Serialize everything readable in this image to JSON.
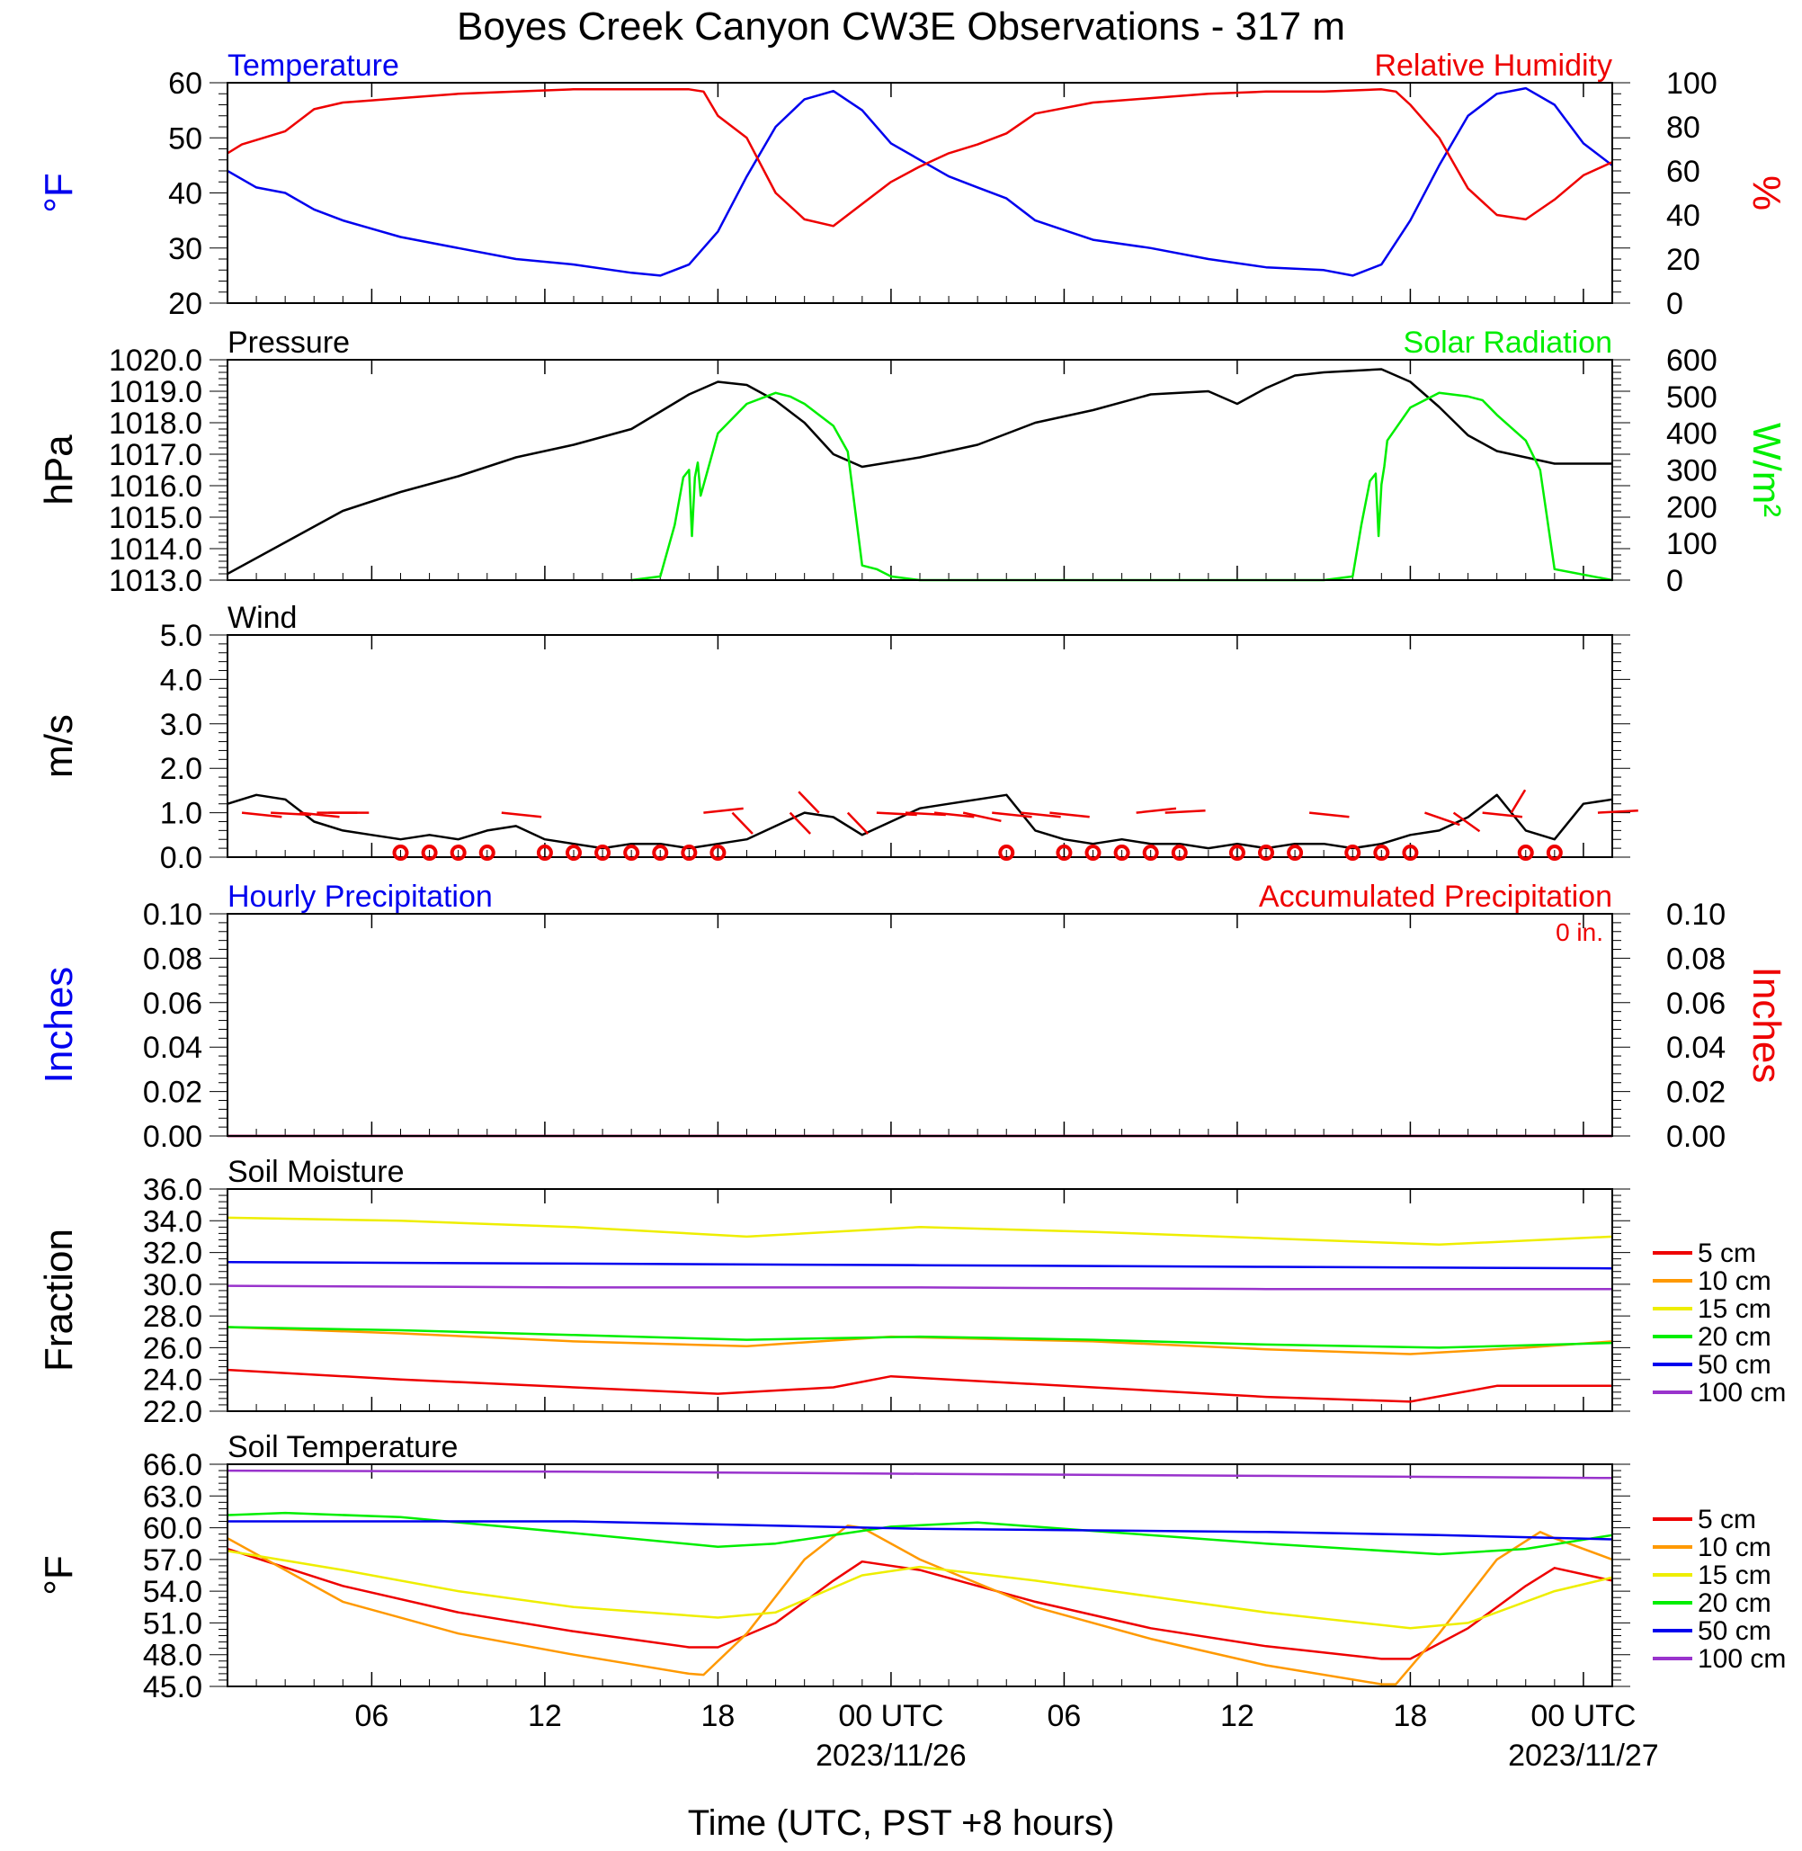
{
  "title": "Boyes Creek Canyon CW3E Observations - 317 m",
  "x_axis": {
    "label": "Time (UTC, PST +8 hours)",
    "range_hours": [
      0,
      48
    ],
    "ticks": [
      {
        "h": 5,
        "label": "06"
      },
      {
        "h": 11,
        "label": "12"
      },
      {
        "h": 17,
        "label": "18"
      },
      {
        "h": 23,
        "label": "00 UTC",
        "date": "2023/11/26"
      },
      {
        "h": 29,
        "label": "06"
      },
      {
        "h": 35,
        "label": "12"
      },
      {
        "h": 41,
        "label": "18"
      },
      {
        "h": 47,
        "label": "00 UTC",
        "date": "2023/11/27"
      }
    ]
  },
  "colors": {
    "blue": "#0000ee",
    "red": "#ee0000",
    "green": "#00ee00",
    "orange": "#ff9900",
    "yellow": "#eeee00",
    "purple": "#9933cc",
    "black": "#000000"
  },
  "chart_data": [
    {
      "type": "line",
      "panel": "temperature-rh",
      "left_title": "Temperature",
      "right_title": "Relative Humidity",
      "ylabel_left": "°F",
      "ylabel_right": "%",
      "ylim_left": [
        20,
        60
      ],
      "yticks_left": [
        "60",
        "50",
        "40",
        "30",
        "20"
      ],
      "ylim_right": [
        0,
        100
      ],
      "yticks_right": [
        "100",
        "80",
        "60",
        "40",
        "20",
        "0"
      ],
      "series": [
        {
          "name": "Temperature",
          "axis": "left",
          "color": "#0000ee",
          "x": [
            0,
            1,
            2,
            3,
            4,
            6,
            8,
            10,
            12,
            14,
            15,
            16,
            17,
            18,
            19,
            20,
            21,
            22,
            23,
            24,
            25,
            26,
            27,
            28,
            30,
            32,
            34,
            36,
            38,
            39,
            40,
            41,
            42,
            43,
            44,
            45,
            46,
            47,
            48
          ],
          "y": [
            44,
            41,
            40,
            37,
            35,
            32,
            30,
            28,
            27,
            25.5,
            25,
            27,
            33,
            43,
            52,
            57,
            58.5,
            55,
            49,
            46,
            43,
            41,
            39,
            35,
            31.5,
            30,
            28,
            26.5,
            26,
            25,
            27,
            35,
            45,
            54,
            58,
            59,
            56,
            49,
            45
          ]
        },
        {
          "name": "Relative Humidity",
          "axis": "right",
          "color": "#ee0000",
          "x": [
            0,
            0.5,
            1,
            2,
            3,
            4,
            5,
            6,
            8,
            10,
            12,
            14,
            15,
            16,
            16.5,
            17,
            18,
            19,
            20,
            21,
            22,
            23,
            24,
            25,
            26,
            27,
            28,
            30,
            32,
            34,
            36,
            38,
            40,
            40.5,
            41,
            42,
            43,
            44,
            45,
            46,
            47,
            48
          ],
          "y": [
            68,
            72,
            74,
            78,
            88,
            91,
            92,
            93,
            95,
            96,
            97,
            97,
            97,
            97,
            96,
            85,
            75,
            50,
            38,
            35,
            45,
            55,
            62,
            68,
            72,
            77,
            86,
            91,
            93,
            95,
            96,
            96,
            97,
            96,
            90,
            75,
            52,
            40,
            38,
            47,
            58,
            64
          ]
        }
      ]
    },
    {
      "type": "line",
      "panel": "pressure-solar",
      "left_title": "Pressure",
      "right_title": "Solar Radiation",
      "ylabel_left": "hPa",
      "ylabel_right": "W/m²",
      "ylim_left": [
        1013,
        1020
      ],
      "yticks_left": [
        "1020.0",
        "1019.0",
        "1018.0",
        "1017.0",
        "1016.0",
        "1015.0",
        "1014.0",
        "1013.0"
      ],
      "ylim_right": [
        0,
        600
      ],
      "yticks_right": [
        "600",
        "500",
        "400",
        "300",
        "200",
        "100",
        "0"
      ],
      "series": [
        {
          "name": "Pressure",
          "axis": "left",
          "color": "#000000",
          "x": [
            0,
            2,
            4,
            6,
            8,
            10,
            12,
            14,
            16,
            17,
            18,
            19,
            20,
            21,
            22,
            24,
            26,
            28,
            30,
            32,
            34,
            35,
            36,
            37,
            38,
            40,
            41,
            42,
            43,
            44,
            46,
            48
          ],
          "y": [
            1013.2,
            1014.2,
            1015.2,
            1015.8,
            1016.3,
            1016.9,
            1017.3,
            1017.8,
            1018.9,
            1019.3,
            1019.2,
            1018.7,
            1018.0,
            1017.0,
            1016.6,
            1016.9,
            1017.3,
            1018.0,
            1018.4,
            1018.9,
            1019.0,
            1018.6,
            1019.1,
            1019.5,
            1019.6,
            1019.7,
            1019.3,
            1018.5,
            1017.6,
            1017.1,
            1016.7,
            1016.7
          ]
        },
        {
          "name": "Solar Radiation",
          "axis": "right",
          "color": "#00ee00",
          "x": [
            14,
            15,
            15.5,
            15.8,
            16,
            16.1,
            16.2,
            16.3,
            16.4,
            17,
            18,
            19,
            19.5,
            20,
            21,
            21.5,
            22,
            22.5,
            23,
            24,
            38,
            39,
            39.3,
            39.6,
            39.8,
            39.9,
            40,
            40.1,
            40.2,
            41,
            42,
            43,
            43.5,
            44,
            45,
            45.5,
            46,
            48
          ],
          "y": [
            0,
            10,
            150,
            280,
            300,
            120,
            280,
            320,
            230,
            400,
            480,
            510,
            500,
            480,
            420,
            350,
            40,
            30,
            10,
            0,
            0,
            10,
            150,
            270,
            290,
            120,
            260,
            310,
            380,
            470,
            510,
            500,
            490,
            450,
            380,
            300,
            30,
            0
          ]
        }
      ]
    },
    {
      "type": "line",
      "panel": "wind",
      "left_title": "Wind",
      "ylabel_left": "m/s",
      "ylim_left": [
        0,
        5
      ],
      "yticks_left": [
        "5.0",
        "4.0",
        "3.0",
        "2.0",
        "1.0",
        "0.0"
      ],
      "series": [
        {
          "name": "Wind",
          "axis": "left",
          "color": "#000000",
          "x": [
            0,
            1,
            2,
            3,
            4,
            5,
            6,
            7,
            8,
            9,
            10,
            11,
            12,
            13,
            14,
            15,
            16,
            17,
            18,
            19,
            20,
            21,
            22,
            23,
            24,
            25,
            26,
            27,
            28,
            29,
            30,
            31,
            32,
            33,
            34,
            35,
            36,
            37,
            38,
            39,
            40,
            41,
            42,
            43,
            44,
            45,
            46,
            47,
            48
          ],
          "y": [
            1.2,
            1.4,
            1.3,
            0.8,
            0.6,
            0.5,
            0.4,
            0.5,
            0.4,
            0.6,
            0.7,
            0.4,
            0.3,
            0.2,
            0.3,
            0.3,
            0.2,
            0.3,
            0.4,
            0.7,
            1.0,
            0.9,
            0.5,
            0.8,
            1.1,
            1.2,
            1.3,
            1.4,
            0.6,
            0.4,
            0.3,
            0.4,
            0.3,
            0.3,
            0.2,
            0.3,
            0.2,
            0.3,
            0.3,
            0.2,
            0.3,
            0.5,
            0.6,
            0.9,
            1.4,
            0.6,
            0.4,
            1.2,
            1.3
          ]
        }
      ]
    },
    {
      "type": "line",
      "panel": "precipitation",
      "left_title": "Hourly Precipitation",
      "right_title": "Accumulated Precipitation",
      "annotation": "0 in.",
      "ylabel_left": "Inches",
      "ylabel_right": "Inches",
      "ylim_left": [
        0,
        0.1
      ],
      "yticks_left": [
        "0.10",
        "0.08",
        "0.06",
        "0.04",
        "0.02",
        "0.00"
      ],
      "ylim_right": [
        0,
        0.1
      ],
      "yticks_right": [
        "0.10",
        "0.08",
        "0.06",
        "0.04",
        "0.02",
        "0.00"
      ],
      "series": [
        {
          "name": "Hourly Precipitation",
          "axis": "left",
          "color": "#0000ee",
          "x": [
            0,
            48
          ],
          "y": [
            0,
            0
          ]
        },
        {
          "name": "Accumulated Precipitation",
          "axis": "right",
          "color": "#ee0000",
          "x": [
            0,
            48
          ],
          "y": [
            0,
            0
          ]
        }
      ]
    },
    {
      "type": "line",
      "panel": "soil-moisture",
      "left_title": "Soil Moisture",
      "ylabel_left": "Fraction",
      "ylim_left": [
        22,
        36
      ],
      "yticks_left": [
        "36.0",
        "34.0",
        "32.0",
        "30.0",
        "28.0",
        "26.0",
        "24.0",
        "22.0"
      ],
      "legend": "right",
      "series": [
        {
          "name": "5 cm",
          "color": "#ee0000",
          "x": [
            0,
            6,
            12,
            17,
            21,
            23,
            30,
            36,
            41,
            44,
            48
          ],
          "y": [
            24.6,
            24.0,
            23.5,
            23.1,
            23.5,
            24.2,
            23.5,
            22.9,
            22.6,
            23.6,
            23.6
          ]
        },
        {
          "name": "10 cm",
          "color": "#ff9900",
          "x": [
            0,
            6,
            12,
            18,
            23,
            30,
            36,
            41,
            45,
            48
          ],
          "y": [
            27.3,
            26.9,
            26.4,
            26.1,
            26.7,
            26.4,
            25.9,
            25.6,
            26.0,
            26.4
          ]
        },
        {
          "name": "15 cm",
          "color": "#eeee00",
          "x": [
            0,
            6,
            12,
            18,
            24,
            30,
            36,
            42,
            48
          ],
          "y": [
            34.2,
            34.0,
            33.6,
            33.0,
            33.6,
            33.3,
            32.9,
            32.5,
            33.0
          ]
        },
        {
          "name": "20 cm",
          "color": "#00ee00",
          "x": [
            0,
            6,
            12,
            18,
            24,
            30,
            36,
            42,
            48
          ],
          "y": [
            27.3,
            27.1,
            26.8,
            26.5,
            26.7,
            26.5,
            26.2,
            26.0,
            26.3
          ]
        },
        {
          "name": "50 cm",
          "color": "#0000ee",
          "x": [
            0,
            12,
            24,
            36,
            48
          ],
          "y": [
            31.4,
            31.3,
            31.2,
            31.1,
            31.0
          ]
        },
        {
          "name": "100 cm",
          "color": "#9933cc",
          "x": [
            0,
            12,
            24,
            36,
            48
          ],
          "y": [
            29.9,
            29.8,
            29.8,
            29.7,
            29.7
          ]
        }
      ]
    },
    {
      "type": "line",
      "panel": "soil-temperature",
      "left_title": "Soil Temperature",
      "ylabel_left": "°F",
      "ylim_left": [
        45,
        66
      ],
      "yticks_left": [
        "66.0",
        "63.0",
        "60.0",
        "57.0",
        "54.0",
        "51.0",
        "48.0",
        "45.0"
      ],
      "legend": "right",
      "series": [
        {
          "name": "5 cm",
          "color": "#ee0000",
          "x": [
            0,
            4,
            8,
            12,
            16,
            17,
            19,
            21,
            22,
            24,
            28,
            32,
            36,
            40,
            41,
            43,
            45,
            46,
            48
          ],
          "y": [
            58,
            54.5,
            52,
            50.2,
            48.7,
            48.7,
            51,
            55,
            56.8,
            56,
            53,
            50.5,
            48.8,
            47.6,
            47.6,
            50.5,
            54.5,
            56.2,
            55
          ]
        },
        {
          "name": "10 cm",
          "color": "#ff9900",
          "x": [
            0,
            4,
            8,
            12,
            16,
            16.5,
            18,
            20,
            21.5,
            22,
            24,
            28,
            32,
            36,
            40,
            40.5,
            42,
            44,
            45.5,
            46,
            48
          ],
          "y": [
            59,
            53,
            50,
            48,
            46.2,
            46.1,
            50,
            57,
            60.2,
            60,
            57,
            52.5,
            49.5,
            47,
            45.2,
            45.2,
            50,
            57,
            59.6,
            59,
            57
          ]
        },
        {
          "name": "15 cm",
          "color": "#eeee00",
          "x": [
            0,
            4,
            8,
            12,
            17,
            19,
            22,
            24,
            28,
            32,
            36,
            41,
            43,
            46,
            48
          ],
          "y": [
            57.8,
            56,
            54,
            52.5,
            51.5,
            52,
            55.5,
            56.3,
            55,
            53.5,
            52,
            50.5,
            51,
            54,
            55.3
          ]
        },
        {
          "name": "20 cm",
          "color": "#00ee00",
          "x": [
            0,
            2,
            6,
            12,
            17,
            19,
            23,
            26,
            30,
            36,
            42,
            45,
            48
          ],
          "y": [
            61.2,
            61.4,
            61,
            59.5,
            58.2,
            58.5,
            60.1,
            60.5,
            59.7,
            58.5,
            57.5,
            58,
            59.3
          ]
        },
        {
          "name": "50 cm",
          "color": "#0000ee",
          "x": [
            0,
            12,
            24,
            36,
            42,
            48
          ],
          "y": [
            60.6,
            60.6,
            59.9,
            59.6,
            59.3,
            58.9
          ]
        },
        {
          "name": "100 cm",
          "color": "#9933cc",
          "x": [
            0,
            12,
            24,
            36,
            48
          ],
          "y": [
            65.4,
            65.3,
            65.1,
            64.9,
            64.7
          ]
        }
      ]
    }
  ],
  "wind_barbs": [
    {
      "h": 0.5,
      "dir_deg": 100,
      "len": 1
    },
    {
      "h": 1.5,
      "dir_deg": 95,
      "len": 1
    },
    {
      "h": 2.5,
      "dir_deg": 100,
      "len": 1
    },
    {
      "h": 3.5,
      "dir_deg": 90,
      "len": 1
    },
    {
      "h": 4.5,
      "dir_deg": 270,
      "len": 1
    },
    {
      "h": 9.5,
      "dir_deg": 100,
      "len": 1
    },
    {
      "h": 16.5,
      "dir_deg": 80,
      "len": 1
    },
    {
      "h": 17.5,
      "dir_deg": 150,
      "len": 1
    },
    {
      "h": 19.5,
      "dir_deg": 150,
      "len": 1
    },
    {
      "h": 20.5,
      "dir_deg": 330,
      "len": 1
    },
    {
      "h": 21.5,
      "dir_deg": 150,
      "len": 1
    },
    {
      "h": 22.5,
      "dir_deg": 95,
      "len": 1
    },
    {
      "h": 23.5,
      "dir_deg": 95,
      "len": 1
    },
    {
      "h": 24.5,
      "dir_deg": 100,
      "len": 1
    },
    {
      "h": 25.5,
      "dir_deg": 110,
      "len": 1
    },
    {
      "h": 26.5,
      "dir_deg": 100,
      "len": 1
    },
    {
      "h": 27.5,
      "dir_deg": 100,
      "len": 1
    },
    {
      "h": 28.5,
      "dir_deg": 100,
      "len": 1
    },
    {
      "h": 31.5,
      "dir_deg": 80,
      "len": 1
    },
    {
      "h": 32.5,
      "dir_deg": 85,
      "len": 1
    },
    {
      "h": 37.5,
      "dir_deg": 100,
      "len": 1
    },
    {
      "h": 41.5,
      "dir_deg": 120,
      "len": 1
    },
    {
      "h": 42.5,
      "dir_deg": 140,
      "len": 1
    },
    {
      "h": 43.5,
      "dir_deg": 100,
      "len": 1
    },
    {
      "h": 44.5,
      "dir_deg": 20,
      "len": 1
    },
    {
      "h": 47.5,
      "dir_deg": 85,
      "len": 1
    }
  ],
  "wind_calm_circles": [
    6,
    7,
    8,
    9,
    11,
    12,
    13,
    14,
    15,
    16,
    17,
    27,
    29,
    30,
    31,
    32,
    33,
    35,
    36,
    37,
    39,
    40,
    41,
    45,
    46
  ]
}
